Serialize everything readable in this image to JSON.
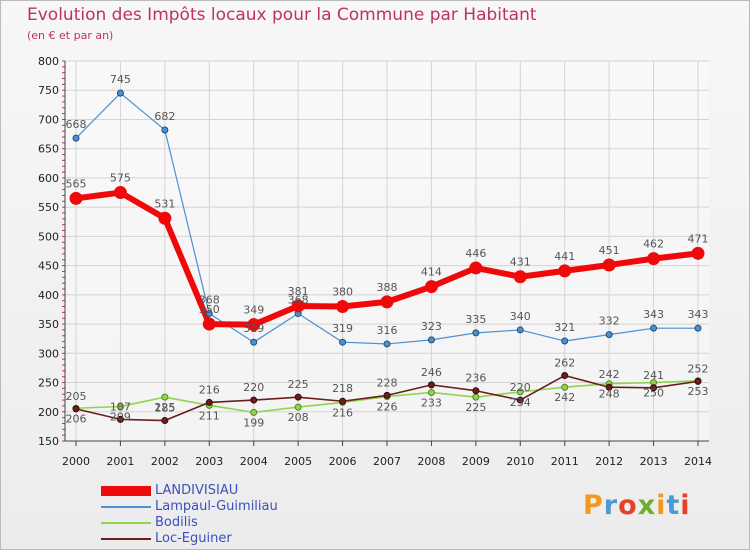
{
  "header": {
    "title": "Evolution des Impôts locaux pour la Commune par Habitant",
    "subtitle": "(en € et par an)"
  },
  "logo": {
    "text": "Proxiti",
    "colors": [
      "#f39a1e",
      "#4a9ad4",
      "#e4412a",
      "#6ab02e",
      "#f39a1e",
      "#4a9ad4",
      "#e4412a"
    ]
  },
  "chart_data": {
    "type": "line",
    "title": "Evolution des Impôts locaux pour la Commune par Habitant",
    "subtitle": "(en € et par an)",
    "xlabel": "",
    "ylabel": "",
    "ylim": [
      150,
      800
    ],
    "yticks": [
      150,
      200,
      250,
      300,
      350,
      400,
      450,
      500,
      550,
      600,
      650,
      700,
      750,
      800
    ],
    "grid": true,
    "legend_position": "bottom-left",
    "x": [
      2000,
      2001,
      2002,
      2003,
      2004,
      2005,
      2006,
      2007,
      2008,
      2009,
      2010,
      2011,
      2012,
      2013,
      2014
    ],
    "series": [
      {
        "name": "LANDIVISIAU",
        "color": "#ee0a0a",
        "values": [
          565,
          575,
          531,
          350,
          349,
          381,
          380,
          388,
          414,
          446,
          431,
          441,
          451,
          462,
          471
        ]
      },
      {
        "name": "Lampaul-Guimiliau",
        "color": "#4c90d0",
        "values": [
          668,
          745,
          682,
          368,
          319,
          368,
          319,
          316,
          323,
          335,
          340,
          321,
          332,
          343,
          343
        ]
      },
      {
        "name": "Bodilis",
        "color": "#8ed64a",
        "values": [
          206,
          209,
          225,
          211,
          199,
          208,
          216,
          226,
          233,
          225,
          234,
          242,
          248,
          250,
          253
        ]
      },
      {
        "name": "Loc-Eguiner",
        "color": "#6b1e1e",
        "values": [
          205,
          187,
          185,
          216,
          220,
          225,
          218,
          228,
          246,
          236,
          220,
          262,
          242,
          241,
          252
        ]
      }
    ]
  }
}
